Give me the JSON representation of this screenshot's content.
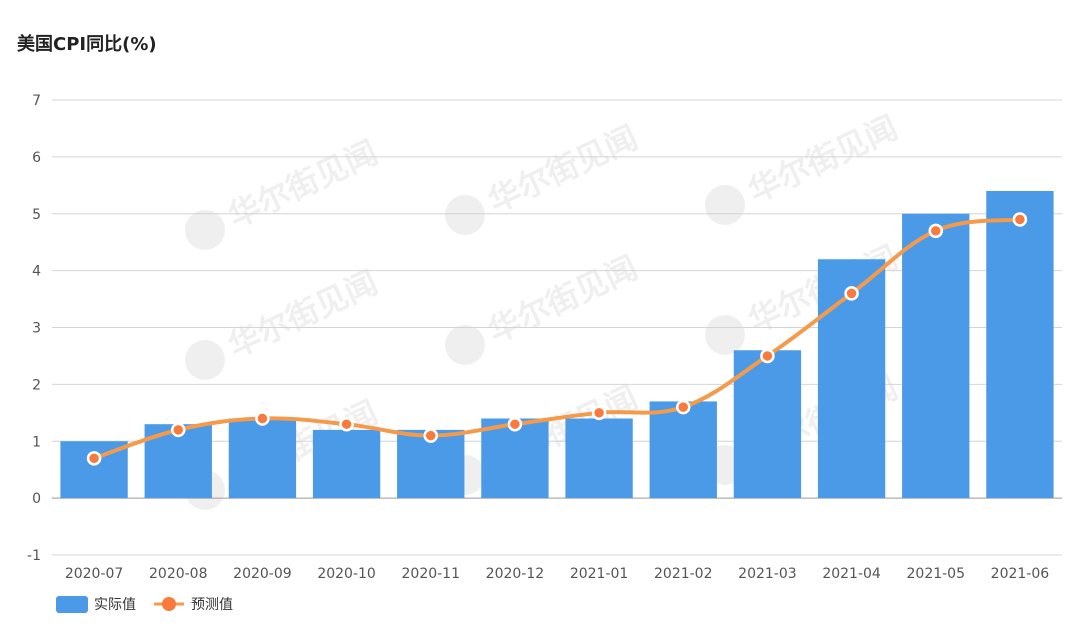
{
  "chart_data": {
    "type": "bar",
    "title": "美国CPI同比(%)",
    "categories": [
      "2020-07",
      "2020-08",
      "2020-09",
      "2020-10",
      "2020-11",
      "2020-12",
      "2021-01",
      "2021-02",
      "2021-03",
      "2021-04",
      "2021-05",
      "2021-06"
    ],
    "series": [
      {
        "name": "实际值",
        "type": "bar",
        "color": "#4a9ae8",
        "values": [
          1.0,
          1.3,
          1.4,
          1.2,
          1.2,
          1.4,
          1.4,
          1.7,
          2.6,
          4.2,
          5.0,
          5.4
        ]
      },
      {
        "name": "预测值",
        "type": "line",
        "color": "#f59a4a",
        "marker_color": "#f97a3c",
        "values": [
          0.7,
          1.2,
          1.4,
          1.3,
          1.1,
          1.3,
          1.5,
          1.6,
          2.5,
          3.6,
          4.7,
          4.9
        ]
      }
    ],
    "ylim": [
      -1,
      7
    ],
    "yticks": [
      -1,
      0,
      1,
      2,
      3,
      4,
      5,
      6,
      7
    ],
    "grid": true,
    "legend_position": "bottom-left",
    "watermark": "华尔街见闻"
  }
}
